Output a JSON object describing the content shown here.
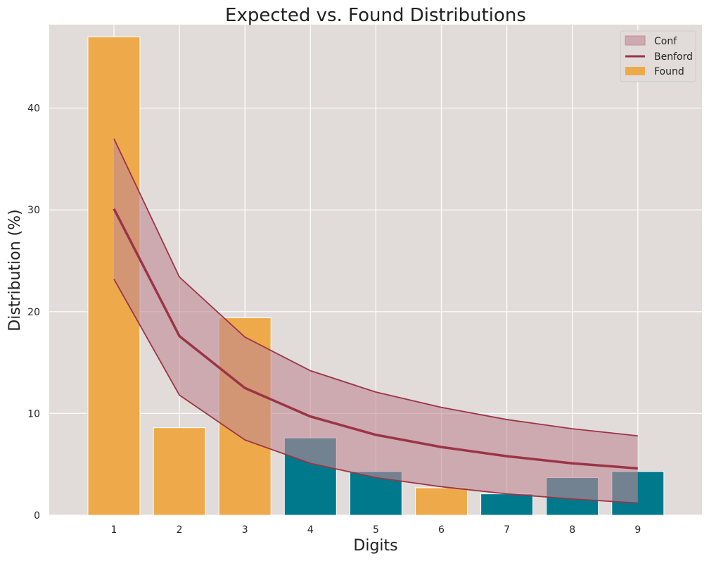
{
  "chart_data": {
    "type": "bar",
    "title": "Expected vs. Found Distributions",
    "xlabel": "Digits",
    "ylabel": "Distribution (%)",
    "categories": [
      "1",
      "2",
      "3",
      "4",
      "5",
      "6",
      "7",
      "8",
      "9"
    ],
    "ylim": [
      0,
      48.2
    ],
    "yticks": [
      0,
      10,
      20,
      30,
      40
    ],
    "grid": true,
    "legend_position": "top-right",
    "legend": [
      {
        "key": "conf",
        "label": "Conf"
      },
      {
        "key": "benford",
        "label": "Benford"
      },
      {
        "key": "found",
        "label": "Found"
      }
    ],
    "series": [
      {
        "name": "Found",
        "type": "bar",
        "values": [
          47.0,
          8.6,
          19.4,
          7.6,
          4.3,
          2.7,
          2.1,
          3.7,
          4.3
        ],
        "bar_colors": [
          "#eeaa4a",
          "#eeaa4a",
          "#eeaa4a",
          "#00798c",
          "#00798c",
          "#eeaa4a",
          "#00798c",
          "#00798c",
          "#00798c"
        ]
      },
      {
        "name": "Benford",
        "type": "line",
        "values": [
          30.1,
          17.6,
          12.5,
          9.7,
          7.9,
          6.7,
          5.8,
          5.1,
          4.6
        ]
      },
      {
        "name": "Conf",
        "type": "area",
        "upper": [
          37.0,
          23.4,
          17.5,
          14.2,
          12.1,
          10.6,
          9.4,
          8.5,
          7.8
        ],
        "lower": [
          23.2,
          11.8,
          7.4,
          5.1,
          3.7,
          2.8,
          2.1,
          1.6,
          1.2
        ]
      }
    ],
    "colors": {
      "plot_background": "#e1dcd9",
      "grid": "#ffffff",
      "found_high": "#eeaa4a",
      "found_low": "#00798c",
      "benford_line": "#9b3446",
      "conf_fill": "#c08892"
    }
  }
}
